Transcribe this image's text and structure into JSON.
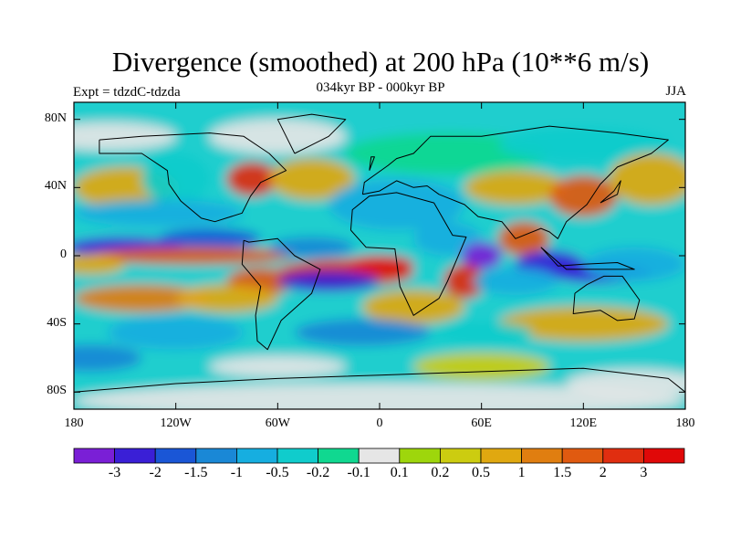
{
  "title": "Divergence (smoothed) at 200 hPa (10**6 m/s)",
  "subtitle": "034kyr BP - 000kyr BP",
  "experiment": "Expt = tdzdC-tdzda",
  "season": "JJA",
  "map": {
    "lon_range": [
      -180,
      180
    ],
    "lat_range": [
      -90,
      90
    ],
    "lat_tick_labels": [
      "80N",
      "40N",
      "0",
      "40S",
      "80S"
    ],
    "lat_tick_values": [
      80,
      40,
      0,
      -40,
      -80
    ],
    "lon_tick_labels": [
      "180",
      "120W",
      "60W",
      "0",
      "60E",
      "120E",
      "180"
    ],
    "lon_tick_values": [
      -180,
      -120,
      -60,
      0,
      60,
      120,
      180
    ]
  },
  "colorbar": {
    "labels": [
      "-3",
      "-2",
      "-1.5",
      "-1",
      "-0.5",
      "-0.2",
      "-0.1",
      "0.1",
      "0.2",
      "0.5",
      "1",
      "1.5",
      "2",
      "3"
    ],
    "colors": [
      "#7a1fd6",
      "#3a1fd6",
      "#1a56d6",
      "#1a88d6",
      "#16aee0",
      "#10cccc",
      "#10d890",
      "#e6e6e6",
      "#9ed60c",
      "#cccc10",
      "#e0a810",
      "#e07e10",
      "#e05a10",
      "#e02e10",
      "#e00808"
    ]
  }
}
